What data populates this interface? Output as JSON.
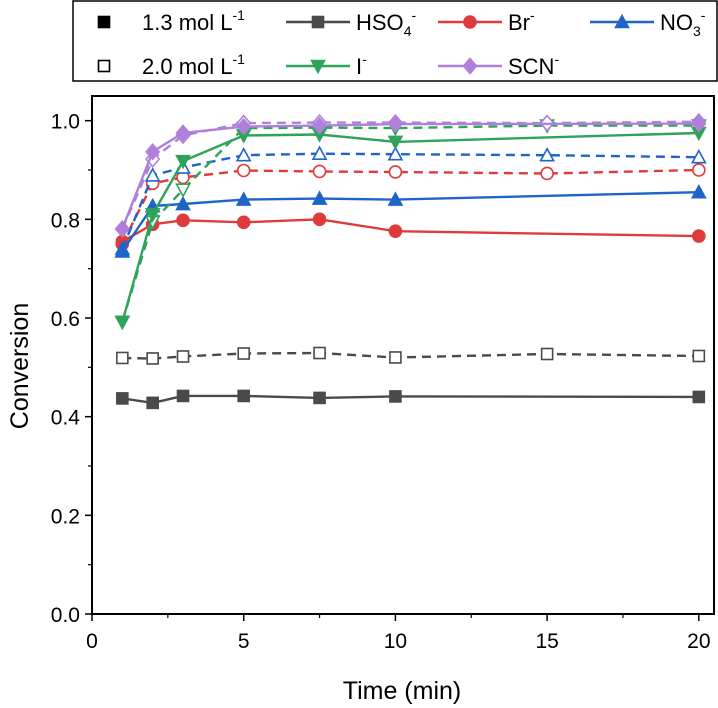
{
  "chart_data": {
    "type": "line",
    "xlabel": "Time (min)",
    "ylabel": "Conversion",
    "xlim": [
      0,
      20.5
    ],
    "ylim": [
      0,
      1.05
    ],
    "xticks": [
      0,
      5,
      10,
      15,
      20
    ],
    "yticks": [
      0.0,
      0.2,
      0.4,
      0.6,
      0.8,
      1.0
    ],
    "xtick_labels": [
      "0",
      "5",
      "10",
      "15",
      "20"
    ],
    "ytick_labels": [
      "0.0",
      "0.2",
      "0.4",
      "0.6",
      "0.8",
      "1.0"
    ],
    "x": [
      1,
      2,
      3,
      5,
      7.5,
      10,
      15,
      20
    ],
    "legend": {
      "placement": "top",
      "conc_entries": [
        {
          "id": "conc-1p3",
          "text": "1.3 mol L",
          "sup": "-1",
          "marker": "filled-square"
        },
        {
          "id": "conc-2p0",
          "text": "2.0 mol L",
          "sup": "-1",
          "marker": "open-square"
        }
      ],
      "ion_entries": [
        {
          "ion": "hso4",
          "main": "HSO",
          "sub": "4",
          "sup": "-"
        },
        {
          "ion": "br",
          "main": "Br",
          "sub": "",
          "sup": "-"
        },
        {
          "ion": "no3",
          "main": "NO",
          "sub": "3",
          "sup": "-"
        },
        {
          "ion": "i",
          "main": "I",
          "sub": "",
          "sup": "-"
        },
        {
          "ion": "scn",
          "main": "SCN",
          "sub": "",
          "sup": "-"
        }
      ]
    },
    "series": [
      {
        "ion": "hso4",
        "color": "#4a4a4a",
        "marker": "square",
        "c13": [
          0.437,
          0.428,
          0.442,
          0.442,
          0.438,
          0.441,
          null,
          0.44
        ],
        "c20": [
          0.519,
          0.518,
          0.522,
          0.528,
          0.529,
          0.52,
          0.527,
          0.523
        ]
      },
      {
        "ion": "br",
        "color": "#e03b3b",
        "marker": "circle",
        "c13": [
          0.755,
          0.79,
          0.798,
          0.794,
          0.8,
          0.776,
          null,
          0.766
        ],
        "c20": [
          0.75,
          0.873,
          0.885,
          0.899,
          0.897,
          0.896,
          0.893,
          0.9
        ]
      },
      {
        "ion": "no3",
        "color": "#1f64c8",
        "marker": "triangle-up",
        "c13": [
          0.735,
          0.827,
          0.831,
          0.84,
          0.842,
          0.84,
          null,
          0.855
        ],
        "c20": [
          0.74,
          0.889,
          0.905,
          0.93,
          0.933,
          0.932,
          0.93,
          0.926
        ]
      },
      {
        "ion": "i",
        "color": "#2ea35a",
        "marker": "triangle-down",
        "c13": [
          0.592,
          0.81,
          0.918,
          0.97,
          0.972,
          0.957,
          null,
          0.975
        ],
        "c20": [
          0.592,
          0.795,
          0.86,
          0.985,
          0.986,
          0.985,
          0.99,
          0.99
        ]
      },
      {
        "ion": "scn",
        "color": "#b07fd9",
        "marker": "diamond",
        "c13": [
          0.781,
          0.937,
          0.975,
          0.988,
          0.99,
          0.993,
          null,
          0.994
        ],
        "c20": [
          0.78,
          0.922,
          0.97,
          0.995,
          0.996,
          0.996,
          0.995,
          0.998
        ]
      }
    ]
  }
}
